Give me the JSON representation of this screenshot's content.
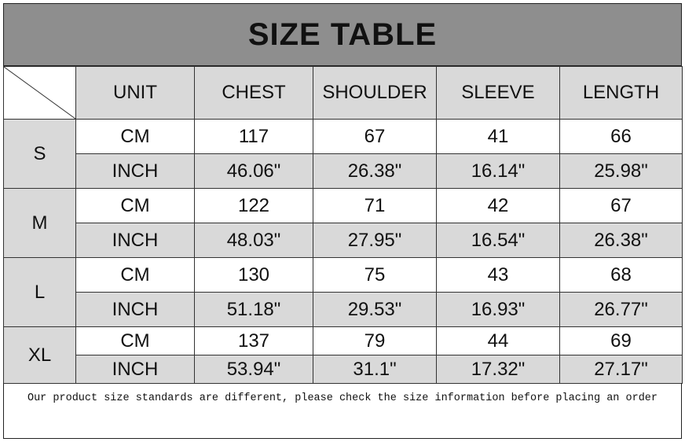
{
  "title": "SIZE TABLE",
  "headers": [
    "UNIT",
    "CHEST",
    "SHOULDER",
    "SLEEVE",
    "LENGTH"
  ],
  "sizes": [
    {
      "size": "S",
      "rows": [
        {
          "unit": "CM",
          "values": [
            "117",
            "67",
            "41",
            "66"
          ]
        },
        {
          "unit": "INCH",
          "values": [
            "46.06\"",
            "26.38\"",
            "16.14\"",
            "25.98\""
          ]
        }
      ]
    },
    {
      "size": "M",
      "rows": [
        {
          "unit": "CM",
          "values": [
            "122",
            "71",
            "42",
            "67"
          ]
        },
        {
          "unit": "INCH",
          "values": [
            "48.03\"",
            "27.95\"",
            "16.54\"",
            "26.38\""
          ]
        }
      ]
    },
    {
      "size": "L",
      "rows": [
        {
          "unit": "CM",
          "values": [
            "130",
            "75",
            "43",
            "68"
          ]
        },
        {
          "unit": "INCH",
          "values": [
            "51.18\"",
            "29.53\"",
            "16.93\"",
            "26.77\""
          ]
        }
      ]
    },
    {
      "size": "XL",
      "rows": [
        {
          "unit": "CM",
          "values": [
            "137",
            "79",
            "44",
            "69"
          ]
        },
        {
          "unit": "INCH",
          "values": [
            "53.94\"",
            "31.1\"",
            "17.32\"",
            "27.17\""
          ]
        }
      ]
    }
  ],
  "footer_note": "Our product size standards are different, please check the size information before placing an order",
  "colors": {
    "title_bg": "#8e8e8e",
    "shaded_cell": "#d9d9d9",
    "white_cell": "#ffffff"
  }
}
